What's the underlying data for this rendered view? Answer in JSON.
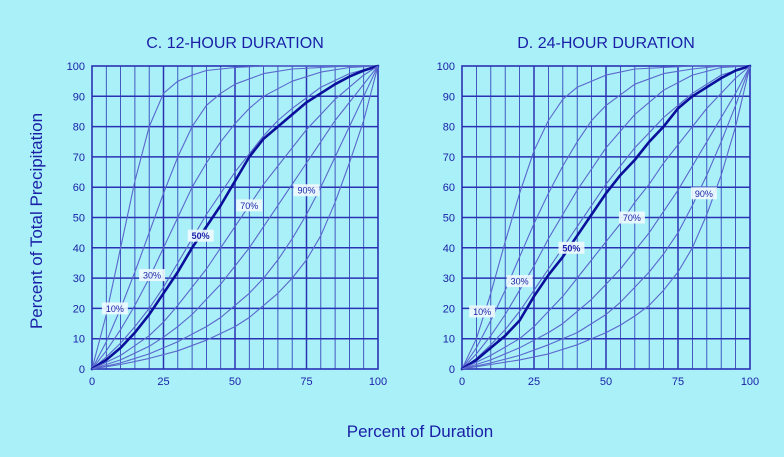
{
  "figure": {
    "ylabel": "Percent of Total Precipitation",
    "xlabel": "Percent of Duration"
  },
  "colors": {
    "background": "#a9f0f9",
    "ink": "#1a1fa6",
    "grid": "#2a32b4",
    "curve": "#5a66cc",
    "median_curve": "#0b0f9a",
    "label_box": "#eef9ff"
  },
  "chart_data": [
    {
      "type": "line",
      "title": "C.  12-HOUR DURATION",
      "xlim": [
        0,
        100
      ],
      "ylim": [
        0,
        100
      ],
      "x_ticks": [
        0,
        25,
        50,
        75,
        100
      ],
      "y_ticks": [
        0,
        10,
        20,
        30,
        40,
        50,
        60,
        70,
        80,
        90,
        100
      ],
      "grid": true,
      "series": [
        {
          "x": [
            0,
            5,
            10,
            15,
            20,
            25,
            30,
            35,
            40,
            50,
            60,
            70,
            80,
            90,
            100
          ],
          "y": [
            0,
            18,
            40,
            62,
            80,
            91,
            95,
            97,
            98.5,
            99.5,
            100,
            100,
            100,
            100,
            100
          ]
        },
        {
          "x": [
            0,
            5,
            10,
            15,
            20,
            25,
            30,
            35,
            40,
            45,
            50,
            60,
            70,
            80,
            90,
            100
          ],
          "y": [
            0,
            9,
            20,
            32,
            45,
            58,
            70,
            80,
            87,
            91,
            94,
            97.5,
            99,
            99.5,
            100,
            100
          ]
        },
        {
          "x": [
            0,
            5,
            10,
            15,
            20,
            25,
            30,
            35,
            40,
            45,
            50,
            55,
            60,
            70,
            80,
            90,
            100
          ],
          "y": [
            0,
            6,
            13,
            21,
            30,
            40,
            50,
            60,
            68,
            75,
            81,
            86,
            90,
            95,
            98,
            99.5,
            100
          ]
        },
        {
          "x": [
            0,
            5,
            10,
            15,
            20,
            25,
            30,
            35,
            40,
            45,
            50,
            55,
            60,
            65,
            70,
            80,
            90,
            100
          ],
          "y": [
            0,
            4,
            8.5,
            14,
            20,
            27,
            35,
            43,
            51,
            58,
            65,
            71,
            77,
            82,
            86,
            93,
            97.5,
            100
          ]
        },
        {
          "x": [
            0,
            5,
            10,
            15,
            20,
            25,
            30,
            35,
            40,
            45,
            50,
            55,
            60,
            65,
            70,
            75,
            80,
            85,
            90,
            95,
            100
          ],
          "y": [
            0,
            3,
            7,
            12,
            18,
            25,
            32,
            40,
            47,
            54,
            62,
            70,
            76,
            80,
            84,
            88,
            91,
            94,
            96.5,
            98.5,
            100
          ]
        },
        {
          "x": [
            0,
            10,
            20,
            25,
            30,
            35,
            40,
            45,
            50,
            55,
            60,
            65,
            70,
            75,
            80,
            85,
            90,
            95,
            100
          ],
          "y": [
            0,
            4.5,
            11,
            15.5,
            21,
            27,
            33,
            40,
            47,
            54,
            61,
            67,
            73,
            79,
            84,
            89,
            93,
            97,
            100
          ]
        },
        {
          "x": [
            0,
            10,
            20,
            25,
            30,
            35,
            40,
            45,
            50,
            55,
            60,
            65,
            70,
            75,
            80,
            85,
            90,
            95,
            100
          ],
          "y": [
            0,
            3,
            7.5,
            10.5,
            14,
            18,
            23,
            28,
            34,
            40,
            47,
            54,
            61,
            68,
            75,
            82,
            88,
            94,
            100
          ]
        },
        {
          "x": [
            0,
            10,
            20,
            30,
            40,
            45,
            50,
            55,
            60,
            65,
            70,
            75,
            80,
            85,
            90,
            95,
            100
          ],
          "y": [
            0,
            2,
            5,
            9,
            14,
            17,
            21,
            25,
            30,
            36,
            43,
            51,
            60,
            70,
            80,
            90,
            100
          ]
        },
        {
          "x": [
            0,
            10,
            20,
            30,
            40,
            50,
            55,
            60,
            65,
            70,
            75,
            80,
            85,
            90,
            95,
            100
          ],
          "y": [
            0,
            1.5,
            3.5,
            6,
            9.5,
            14,
            17,
            21,
            25,
            30,
            36,
            44,
            55,
            68,
            82,
            100
          ]
        }
      ],
      "median_index": 4,
      "annotations": [
        {
          "text": "10%",
          "x": 8,
          "y": 20,
          "bold": false
        },
        {
          "text": "30%",
          "x": 21,
          "y": 31,
          "bold": false
        },
        {
          "text": "50%",
          "x": 38,
          "y": 44,
          "bold": true
        },
        {
          "text": "70%",
          "x": 55,
          "y": 54,
          "bold": false
        },
        {
          "text": "90%",
          "x": 75,
          "y": 59,
          "bold": false
        }
      ]
    },
    {
      "type": "line",
      "title": "D.  24-HOUR DURATION",
      "xlim": [
        0,
        100
      ],
      "ylim": [
        0,
        100
      ],
      "x_ticks": [
        0,
        25,
        50,
        75,
        100
      ],
      "y_ticks": [
        0,
        10,
        20,
        30,
        40,
        50,
        60,
        70,
        80,
        90,
        100
      ],
      "grid": true,
      "series": [
        {
          "x": [
            0,
            5,
            10,
            15,
            20,
            25,
            30,
            35,
            40,
            50,
            60,
            70,
            80,
            90,
            100
          ],
          "y": [
            0,
            10,
            25,
            42,
            58,
            72,
            82,
            89,
            93,
            97,
            99,
            99.5,
            100,
            100,
            100
          ]
        },
        {
          "x": [
            0,
            5,
            10,
            15,
            20,
            25,
            30,
            35,
            40,
            45,
            50,
            60,
            70,
            80,
            90,
            100
          ],
          "y": [
            0,
            7,
            16,
            26,
            37,
            48,
            58,
            67,
            75,
            82,
            87,
            94,
            97.5,
            99,
            100,
            100
          ]
        },
        {
          "x": [
            0,
            5,
            10,
            15,
            20,
            25,
            30,
            35,
            40,
            45,
            50,
            60,
            70,
            80,
            90,
            100
          ],
          "y": [
            0,
            5,
            11,
            18,
            26,
            34,
            43,
            51,
            59,
            66,
            73,
            84,
            92,
            97,
            99.5,
            100
          ]
        },
        {
          "x": [
            0,
            5,
            10,
            15,
            20,
            25,
            30,
            35,
            40,
            45,
            50,
            55,
            60,
            65,
            70,
            75,
            80,
            90,
            100
          ],
          "y": [
            0,
            3.5,
            8,
            13,
            19,
            26,
            33,
            40,
            47,
            54,
            61,
            67,
            73,
            78,
            83,
            87,
            91,
            97,
            100
          ]
        },
        {
          "x": [
            0,
            5,
            10,
            15,
            20,
            25,
            30,
            35,
            40,
            45,
            50,
            55,
            60,
            65,
            70,
            75,
            80,
            85,
            90,
            95,
            100
          ],
          "y": [
            0,
            3,
            7,
            11,
            16,
            24,
            31,
            37,
            44,
            51,
            58,
            64,
            69,
            75,
            80,
            86,
            90,
            93,
            96,
            98.5,
            100
          ]
        },
        {
          "x": [
            0,
            10,
            20,
            25,
            30,
            35,
            40,
            45,
            50,
            55,
            60,
            65,
            70,
            75,
            80,
            85,
            90,
            95,
            100
          ],
          "y": [
            0,
            4.5,
            10,
            14,
            19,
            24,
            30,
            36,
            42,
            48,
            55,
            61,
            68,
            74,
            80,
            86,
            91,
            96,
            100
          ]
        },
        {
          "x": [
            0,
            10,
            20,
            30,
            35,
            40,
            45,
            50,
            55,
            60,
            65,
            70,
            75,
            80,
            85,
            90,
            95,
            100
          ],
          "y": [
            0,
            3,
            7,
            12,
            15,
            19,
            23,
            28,
            33,
            39,
            45,
            52,
            59,
            67,
            75,
            83,
            91,
            100
          ]
        },
        {
          "x": [
            0,
            10,
            20,
            30,
            40,
            45,
            50,
            55,
            60,
            65,
            70,
            75,
            80,
            85,
            90,
            95,
            100
          ],
          "y": [
            0,
            2,
            4.5,
            8,
            12,
            15,
            18,
            22,
            27,
            32,
            38,
            45,
            54,
            64,
            75,
            87,
            100
          ]
        },
        {
          "x": [
            0,
            10,
            20,
            30,
            40,
            50,
            55,
            60,
            65,
            70,
            75,
            80,
            85,
            90,
            95,
            100
          ],
          "y": [
            0,
            1.5,
            3,
            5,
            8,
            12,
            14.5,
            17.5,
            21,
            26,
            32,
            40,
            51,
            64,
            80,
            100
          ]
        }
      ],
      "median_index": 4,
      "annotations": [
        {
          "text": "10%",
          "x": 7,
          "y": 19,
          "bold": false
        },
        {
          "text": "30%",
          "x": 20,
          "y": 29,
          "bold": false
        },
        {
          "text": "50%",
          "x": 38,
          "y": 40,
          "bold": true
        },
        {
          "text": "70%",
          "x": 59,
          "y": 50,
          "bold": false
        },
        {
          "text": "90%",
          "x": 84,
          "y": 58,
          "bold": false
        }
      ]
    }
  ]
}
